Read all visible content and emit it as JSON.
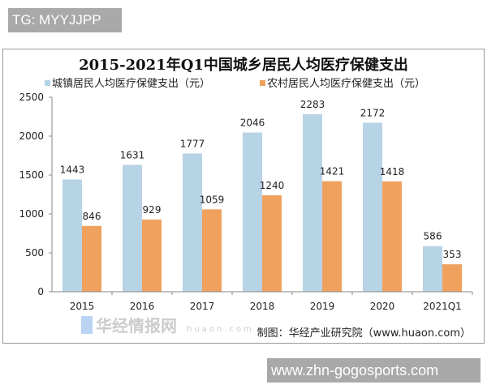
{
  "watermarks": {
    "top_tag": "TG: MYYJJPP",
    "bottom_site": "www.zhn-gogosports.com",
    "logo_text": "华经情报网",
    "logo_sub": "huaon.com"
  },
  "colors": {
    "urban": "#b7d3e6",
    "rural": "#f0a15e"
  },
  "chart_data": {
    "type": "bar",
    "title": "2015-2021年Q1中国城乡居民人均医疗保健支出",
    "categories": [
      "2015",
      "2016",
      "2017",
      "2018",
      "2019",
      "2020",
      "2021Q1"
    ],
    "series": [
      {
        "name": "城镇居民人均医疗保健支出（元）",
        "values": [
          1443,
          1631,
          1777,
          2046,
          2283,
          2172,
          586
        ]
      },
      {
        "name": "农村居民人均医疗保健支出（元）",
        "values": [
          846,
          929,
          1059,
          1240,
          1421,
          1418,
          353
        ]
      }
    ],
    "yticks": [
      "0",
      "500",
      "1000",
      "1500",
      "2000",
      "2500"
    ],
    "ylim": [
      0,
      2500
    ],
    "grid": false,
    "legend": "top",
    "source": "制图：华经产业研究院（www.huaon.com）"
  }
}
